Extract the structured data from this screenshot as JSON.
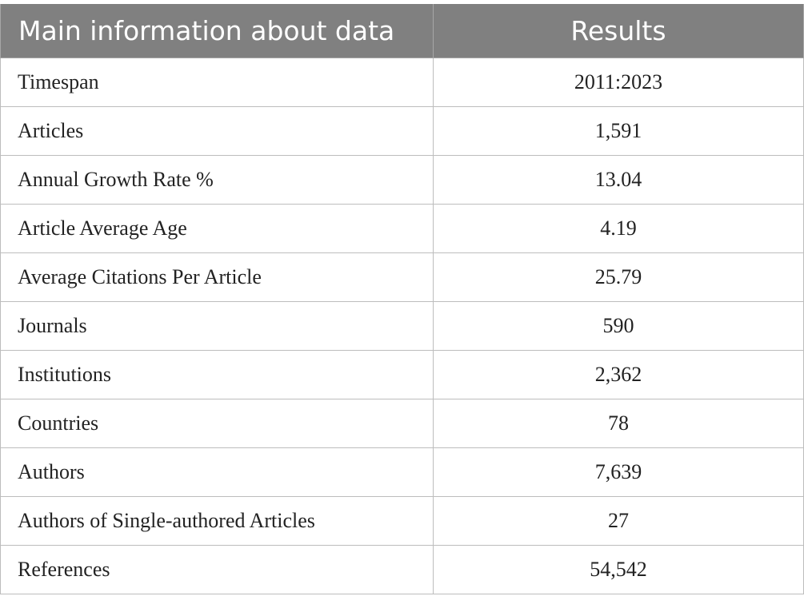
{
  "table": {
    "headers": {
      "metric": "Main information about data",
      "result": "Results"
    },
    "rows": [
      {
        "label": "Timespan",
        "value": "2011:2023"
      },
      {
        "label": "Articles",
        "value": "1,591"
      },
      {
        "label": "Annual Growth Rate %",
        "value": "13.04"
      },
      {
        "label": "Article Average Age",
        "value": "4.19"
      },
      {
        "label": "Average Citations Per Article",
        "value": "25.79"
      },
      {
        "label": "Journals",
        "value": "590"
      },
      {
        "label": "Institutions",
        "value": "2,362"
      },
      {
        "label": "Countries",
        "value": "78"
      },
      {
        "label": "Authors",
        "value": "7,639"
      },
      {
        "label": "Authors of Single-authored Articles",
        "value": "27"
      },
      {
        "label": "References",
        "value": "54,542"
      }
    ]
  },
  "colors": {
    "header_bg": "#808080",
    "header_text": "#ffffff",
    "border": "#bdbdbd"
  }
}
